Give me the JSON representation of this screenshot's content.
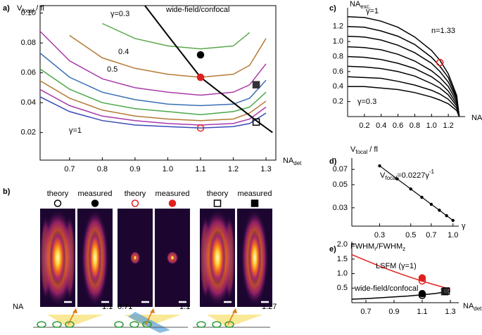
{
  "chart_data": [
    {
      "type": "line",
      "label": "a)",
      "frame": "box",
      "ylabel": [
        {
          "text": "V"
        },
        {
          "text": "focal",
          "pos": "sub"
        },
        {
          "text": " / fl"
        }
      ],
      "xlabel": [
        {
          "text": "NA"
        },
        {
          "text": "det",
          "pos": "sub"
        }
      ],
      "x": [
        0.6,
        0.7,
        0.8,
        0.9,
        1.0,
        1.1,
        1.2,
        1.25,
        1.3
      ],
      "xlim": [
        0.61,
        1.33
      ],
      "ylim": [
        0.0015,
        0.105
      ],
      "xticks": [
        0.7,
        0.8,
        0.9,
        {
          "value": 1,
          "label": "1.0"
        },
        1.1,
        1.2,
        1.3
      ],
      "yticks": [
        0.02,
        0.04,
        0.06,
        0.08,
        {
          "value": 0.1,
          "label": "0.10"
        }
      ],
      "series": [
        {
          "name": "γ=0.3",
          "color": "#5aa84a",
          "values": [
            null,
            null,
            0.093,
            0.083,
            0.078,
            0.076,
            0.078,
            0.087,
            null
          ]
        },
        {
          "name": "0.4",
          "color": "#b57a35",
          "values": [
            null,
            0.085,
            0.07,
            0.063,
            0.059,
            0.057,
            0.059,
            0.065,
            0.083
          ]
        },
        {
          "name": "0.5",
          "color": "#a83aa8",
          "values": [
            0.09,
            0.068,
            0.056,
            0.05,
            0.047,
            0.045,
            0.047,
            0.052,
            0.066
          ]
        },
        {
          "color": "#3a6fb5",
          "values": [
            0.075,
            0.057,
            0.047,
            0.042,
            0.039,
            0.038,
            0.039,
            0.043,
            0.055
          ]
        },
        {
          "color": "#4aa84a",
          "values": [
            0.064,
            0.049,
            0.04,
            0.036,
            0.034,
            0.032,
            0.034,
            0.037,
            0.047
          ]
        },
        {
          "color": "#b57a35",
          "values": [
            0.056,
            0.043,
            0.035,
            0.031,
            0.029,
            0.028,
            0.029,
            0.033,
            0.041
          ]
        },
        {
          "color": "#a83aa8",
          "values": [
            0.05,
            0.038,
            0.031,
            0.028,
            0.026,
            0.025,
            0.026,
            0.029,
            0.037
          ]
        },
        {
          "name": "γ=1",
          "color": "#3a4ab5",
          "values": [
            0.045,
            0.034,
            0.028,
            0.025,
            0.024,
            0.023,
            0.024,
            0.026,
            0.033
          ]
        },
        {
          "name": "wide-field/confocal",
          "color": "#000000",
          "width": 2,
          "x": [
            0.93,
            1.0,
            1.1,
            1.2,
            1.27,
            1.32
          ],
          "values": [
            0.105,
            0.085,
            0.057,
            0.04,
            0.028,
            0.02
          ]
        }
      ],
      "markers": [
        {
          "x": 1.1,
          "y": 0.072,
          "shape": "circle",
          "filled": true,
          "color": "#000000"
        },
        {
          "x": 1.1,
          "y": 0.057,
          "shape": "circle",
          "filled": true,
          "color": "#e02020"
        },
        {
          "x": 1.1,
          "y": 0.057,
          "shape": "circle",
          "filled": false,
          "color": "#e02020"
        },
        {
          "x": 1.1,
          "y": 0.023,
          "shape": "circle",
          "filled": false,
          "color": "#e02020"
        },
        {
          "x": 1.27,
          "y": 0.052,
          "shape": "square",
          "filled": true,
          "color": "#333333"
        },
        {
          "x": 1.27,
          "y": 0.027,
          "shape": "square",
          "filled": false,
          "color": "#000000"
        }
      ]
    },
    {
      "type": "psf-images",
      "label": "b)",
      "na_label": "NA",
      "groups": [
        {
          "theory": "theory",
          "measured": "measured",
          "marker": "circle",
          "color": "#000000",
          "na": [
            "1.1"
          ]
        },
        {
          "theory": "theory",
          "measured": "measured",
          "marker": "circle",
          "color": "#e02020",
          "na": [
            "0.71",
            "1.1"
          ]
        },
        {
          "theory": "theory",
          "measured": "measured",
          "marker": "square",
          "color": "#000000",
          "na": [
            "1.27"
          ]
        }
      ]
    },
    {
      "type": "line",
      "label": "c)",
      "frame": "axes",
      "ylabel": [
        {
          "text": "NA"
        },
        {
          "text": "exc.",
          "pos": "sub"
        }
      ],
      "xlabel": [
        {
          "text": "NA"
        },
        {
          "text": "det.",
          "pos": "sub"
        }
      ],
      "note": [
        {
          "text": "n=1.33"
        }
      ],
      "x": [
        0,
        0.2,
        0.4,
        0.6,
        0.8,
        1.0,
        1.1,
        1.2,
        1.3,
        1.33
      ],
      "xlim": [
        0,
        1.4
      ],
      "ylim": [
        0,
        1.45
      ],
      "xticks": [
        0.2,
        0.4,
        0.6,
        0.8,
        {
          "value": 1,
          "label": "1.0"
        },
        1.2
      ],
      "yticks": [
        0.2,
        0.4,
        0.6,
        0.8,
        {
          "value": 1,
          "label": "1.0"
        },
        1.2
      ],
      "series": [
        {
          "name": "γ=1",
          "color": "#000000",
          "values": [
            1.33,
            1.32,
            1.27,
            1.19,
            1.06,
            0.88,
            0.75,
            0.57,
            0.28,
            0
          ]
        },
        {
          "color": "#000000",
          "values": [
            1.2,
            1.19,
            1.14,
            1.07,
            0.96,
            0.79,
            0.67,
            0.52,
            0.25,
            0
          ]
        },
        {
          "color": "#000000",
          "values": [
            1.07,
            1.06,
            1.02,
            0.95,
            0.85,
            0.71,
            0.6,
            0.46,
            0.23,
            0
          ]
        },
        {
          "color": "#000000",
          "values": [
            0.93,
            0.92,
            0.89,
            0.83,
            0.74,
            0.61,
            0.52,
            0.4,
            0.2,
            0
          ]
        },
        {
          "color": "#000000",
          "values": [
            0.8,
            0.79,
            0.76,
            0.71,
            0.64,
            0.53,
            0.45,
            0.34,
            0.17,
            0
          ]
        },
        {
          "color": "#000000",
          "values": [
            0.67,
            0.66,
            0.64,
            0.6,
            0.54,
            0.44,
            0.38,
            0.29,
            0.14,
            0
          ]
        },
        {
          "color": "#000000",
          "values": [
            0.53,
            0.52,
            0.51,
            0.47,
            0.42,
            0.35,
            0.3,
            0.23,
            0.11,
            0
          ]
        },
        {
          "name": "γ=0.3",
          "color": "#000000",
          "values": [
            0.4,
            0.4,
            0.38,
            0.36,
            0.32,
            0.26,
            0.22,
            0.17,
            0.08,
            0
          ]
        }
      ],
      "markers": [
        {
          "x": 1.1,
          "y": 0.72,
          "shape": "circle",
          "filled": false,
          "color": "#e02020"
        }
      ]
    },
    {
      "type": "scatter",
      "label": "d)",
      "frame": "axes",
      "xlog": true,
      "ylog": true,
      "ylabel": [
        {
          "text": "V"
        },
        {
          "text": "focal",
          "pos": "sub"
        },
        {
          "text": " / fl"
        }
      ],
      "xlabel": [
        {
          "text": "γ"
        }
      ],
      "note": [
        {
          "text": "V"
        },
        {
          "text": "focal",
          "pos": "sub"
        },
        {
          "text": "=0.0227γ"
        },
        {
          "text": "-1",
          "pos": "sup"
        }
      ],
      "fit": {
        "coefficient": 0.0227,
        "exponent": -1
      },
      "xlim": [
        0.19,
        1.1
      ],
      "ylim": [
        0.02,
        0.09
      ],
      "xticks": [
        0.3,
        0.5,
        0.7,
        {
          "value": 1,
          "label": "1.0"
        }
      ],
      "yticks": [
        0.03,
        0.05,
        0.07
      ],
      "series": [
        {
          "color": "#000000",
          "marker": "dot",
          "line": false,
          "x": [
            0.3,
            0.4,
            0.5,
            0.6,
            0.7,
            0.8,
            0.9,
            1.0
          ],
          "values": [
            0.0757,
            0.0568,
            0.0454,
            0.0378,
            0.0324,
            0.0284,
            0.0252,
            0.0227
          ]
        }
      ]
    },
    {
      "type": "line",
      "label": "e)",
      "frame": "axes",
      "ylabel": [
        {
          "text": "FWHM"
        },
        {
          "text": "r",
          "pos": "sub"
        },
        {
          "text": "/FWHM"
        },
        {
          "text": "z",
          "pos": "sub"
        }
      ],
      "xlabel": [
        {
          "text": "NA"
        },
        {
          "text": "det",
          "pos": "sub"
        }
      ],
      "x": [
        0.6,
        0.7,
        0.8,
        0.9,
        1.0,
        1.1,
        1.2,
        1.3
      ],
      "xlim": [
        0.6,
        1.36
      ],
      "ylim": [
        0,
        2.1
      ],
      "xticks": [
        0.7,
        0.9,
        1.1,
        1.3
      ],
      "yticks": [
        0.5,
        {
          "value": 1,
          "label": "1.0"
        },
        1.5,
        {
          "value": 2,
          "label": "2.0"
        }
      ],
      "series": [
        {
          "name": "LSFM (γ=1)",
          "color": "#e02020",
          "values": [
            1.65,
            1.45,
            1.25,
            1.07,
            0.9,
            0.74,
            0.6,
            0.46
          ]
        },
        {
          "name": "wide-field/confocal",
          "color": "#000000",
          "values": [
            0.12,
            0.14,
            0.17,
            0.2,
            0.23,
            0.27,
            0.32,
            0.4
          ]
        }
      ],
      "markers": [
        {
          "x": 1.1,
          "y": 0.85,
          "shape": "circle",
          "filled": true,
          "color": "#e02020"
        },
        {
          "x": 1.1,
          "y": 0.75,
          "shape": "circle",
          "filled": false,
          "color": "#e02020"
        },
        {
          "x": 1.1,
          "y": 0.31,
          "shape": "circle",
          "filled": true,
          "color": "#000000"
        },
        {
          "x": 1.1,
          "y": 0.25,
          "shape": "circle",
          "filled": false,
          "color": "#000000"
        },
        {
          "x": 1.26,
          "y": 0.38,
          "shape": "square",
          "filled": true,
          "color": "#333333"
        },
        {
          "x": 1.27,
          "y": 0.4,
          "shape": "square",
          "filled": false,
          "color": "#000000"
        }
      ]
    }
  ]
}
